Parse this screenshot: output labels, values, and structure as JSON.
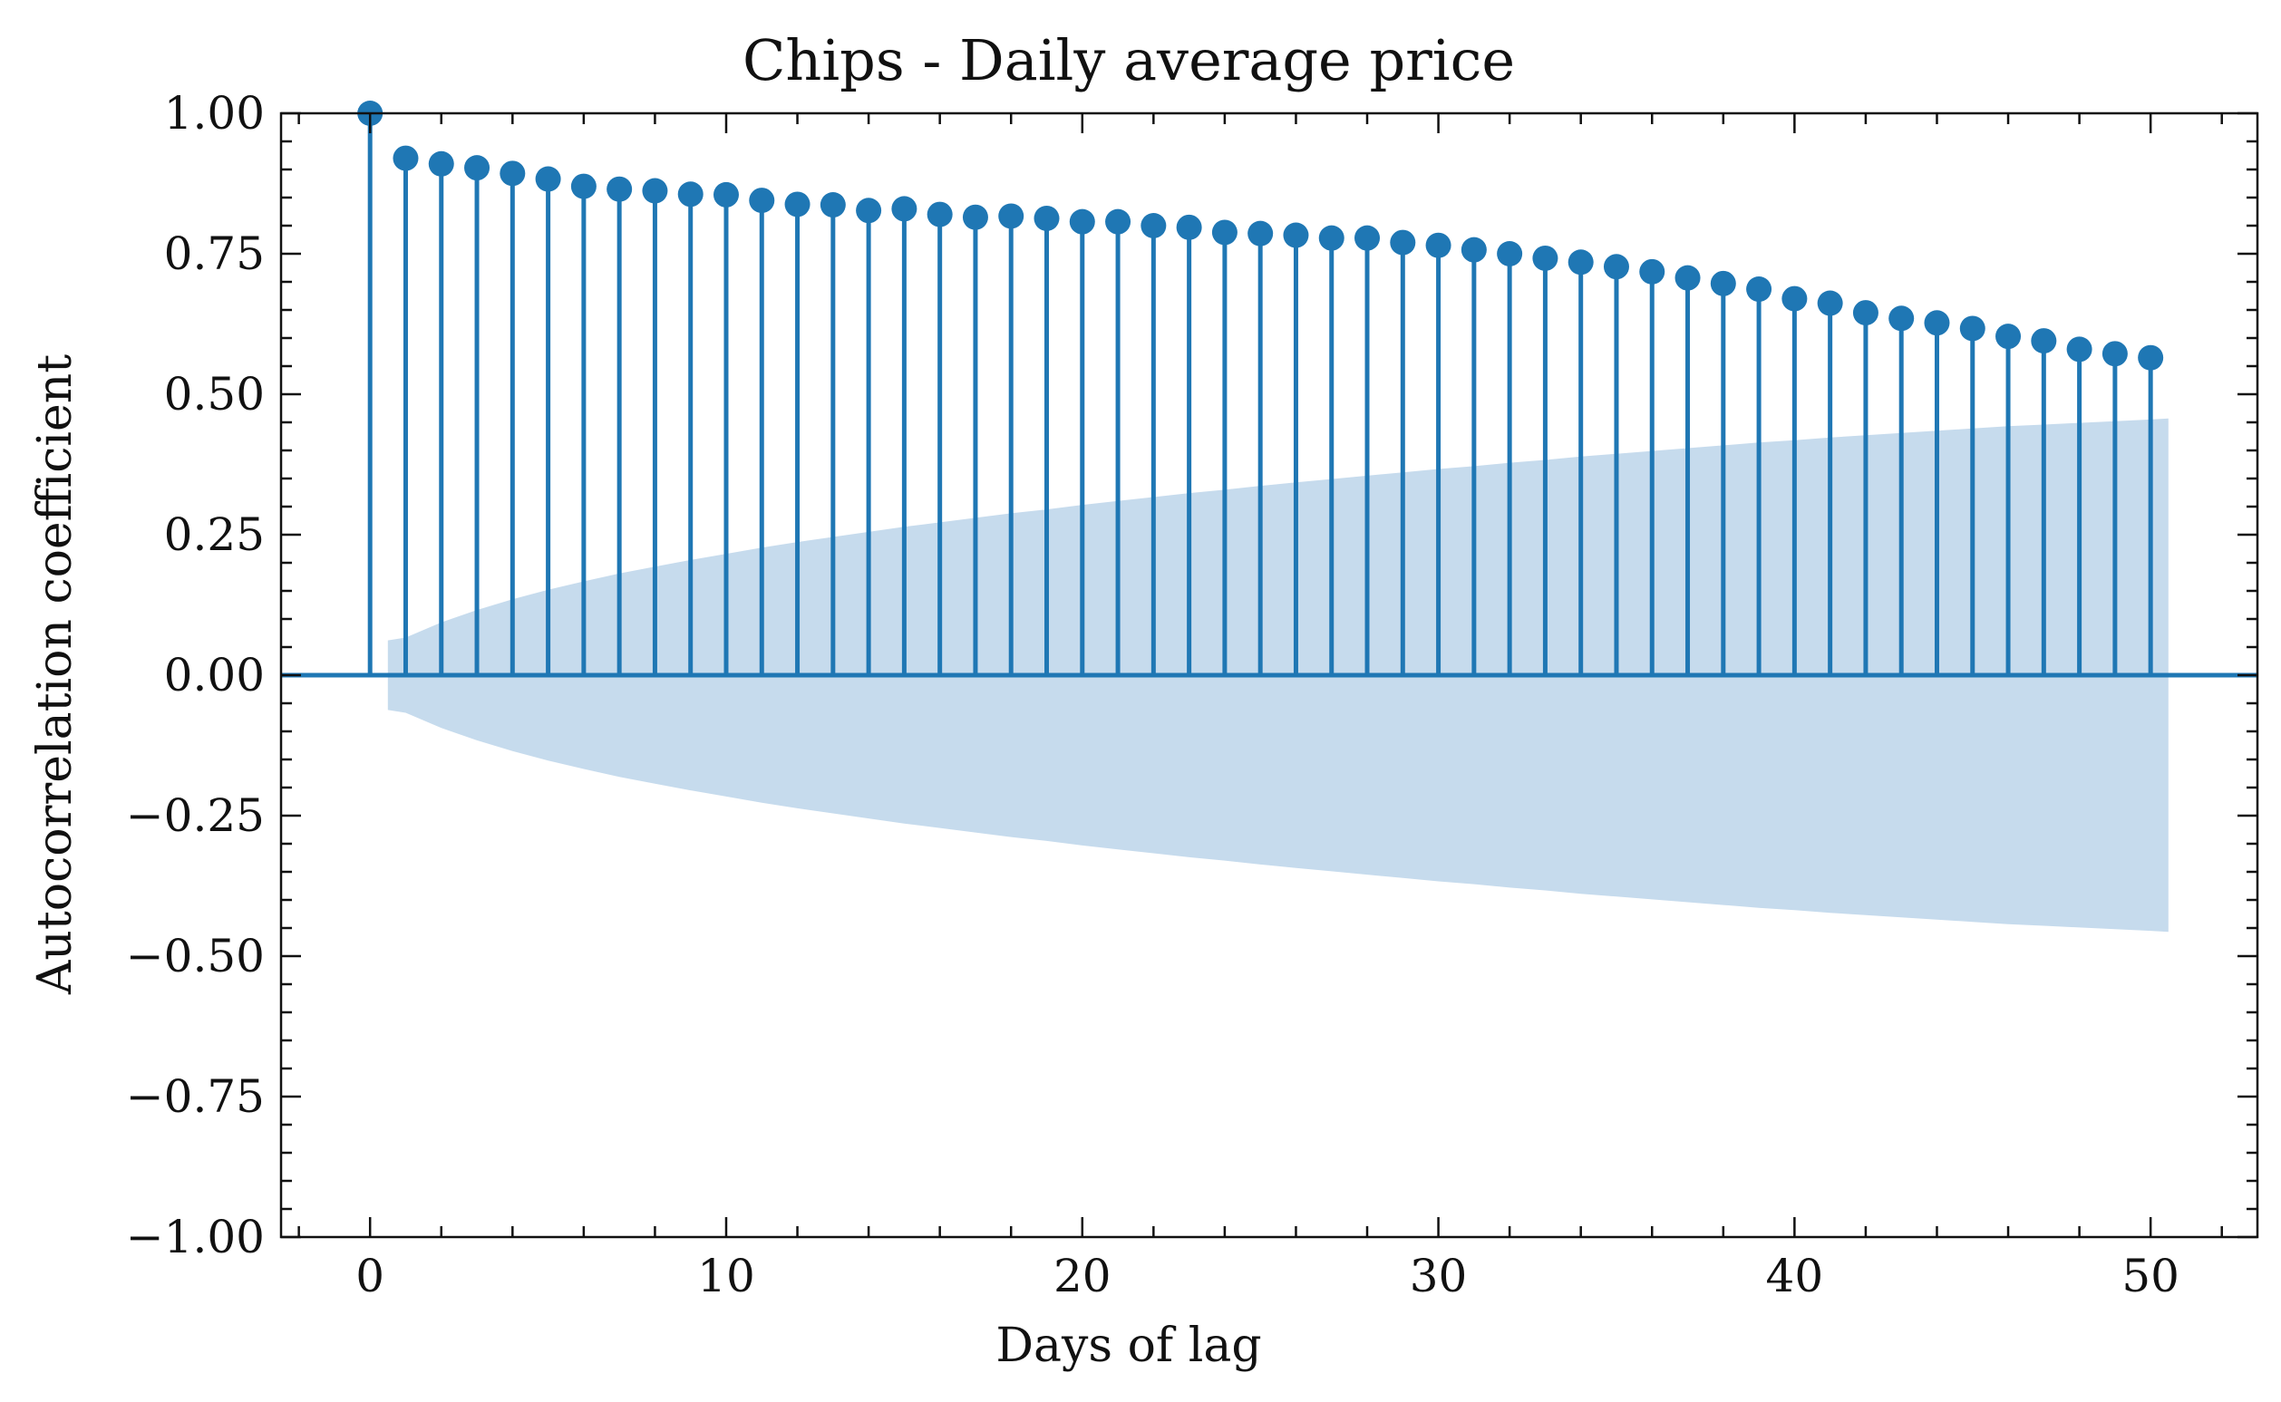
{
  "chart_data": {
    "type": "stem",
    "title": "Chips - Daily average price",
    "xlabel": "Days of lag",
    "ylabel": "Autocorrelation coefficient",
    "xlim": [
      -2.5,
      53
    ],
    "ylim": [
      -1.0,
      1.0
    ],
    "xticks": [
      0,
      10,
      20,
      30,
      40,
      50
    ],
    "xtick_labels": [
      "0",
      "10",
      "20",
      "30",
      "40",
      "50"
    ],
    "yticks": [
      1.0,
      0.75,
      0.5,
      0.25,
      0.0,
      -0.25,
      -0.5,
      -0.75,
      -1.0
    ],
    "ytick_labels": [
      "1.00",
      "0.75",
      "0.50",
      "0.25",
      "0.00",
      "−0.25",
      "−0.50",
      "−0.75",
      "−1.00"
    ],
    "grid": false,
    "colors": {
      "stem": "#1f77b4",
      "confidence_band": "#c6dbed"
    },
    "series": {
      "lags": [
        0,
        1,
        2,
        3,
        4,
        5,
        6,
        7,
        8,
        9,
        10,
        11,
        12,
        13,
        14,
        15,
        16,
        17,
        18,
        19,
        20,
        21,
        22,
        23,
        24,
        25,
        26,
        27,
        28,
        29,
        30,
        31,
        32,
        33,
        34,
        35,
        36,
        37,
        38,
        39,
        40,
        41,
        42,
        43,
        44,
        45,
        46,
        47,
        48,
        49,
        50
      ],
      "acf": [
        1.0,
        0.92,
        0.91,
        0.903,
        0.893,
        0.883,
        0.87,
        0.865,
        0.862,
        0.856,
        0.855,
        0.845,
        0.838,
        0.837,
        0.827,
        0.83,
        0.82,
        0.815,
        0.817,
        0.813,
        0.807,
        0.807,
        0.8,
        0.797,
        0.788,
        0.786,
        0.783,
        0.778,
        0.778,
        0.77,
        0.765,
        0.757,
        0.75,
        0.742,
        0.735,
        0.727,
        0.718,
        0.707,
        0.697,
        0.687,
        0.67,
        0.662,
        0.645,
        0.635,
        0.627,
        0.617,
        0.603,
        0.595,
        0.58,
        0.572,
        0.565
      ]
    },
    "confidence_band": {
      "lags": [
        0.5,
        1,
        2,
        3,
        4,
        5,
        6,
        7,
        8,
        9,
        10,
        11,
        12,
        13,
        14,
        15,
        16,
        17,
        18,
        19,
        20,
        21,
        22,
        23,
        24,
        25,
        26,
        27,
        28,
        29,
        30,
        31,
        32,
        33,
        34,
        35,
        36,
        37,
        38,
        39,
        40,
        41,
        42,
        43,
        44,
        45,
        46,
        47,
        48,
        49,
        50,
        50.5
      ],
      "upper": [
        0.062,
        0.067,
        0.094,
        0.116,
        0.135,
        0.152,
        0.167,
        0.181,
        0.193,
        0.205,
        0.216,
        0.227,
        0.237,
        0.246,
        0.255,
        0.264,
        0.272,
        0.28,
        0.288,
        0.295,
        0.303,
        0.31,
        0.317,
        0.324,
        0.33,
        0.337,
        0.343,
        0.349,
        0.355,
        0.361,
        0.367,
        0.372,
        0.378,
        0.383,
        0.389,
        0.394,
        0.399,
        0.404,
        0.409,
        0.414,
        0.418,
        0.423,
        0.427,
        0.431,
        0.435,
        0.439,
        0.443,
        0.446,
        0.449,
        0.452,
        0.455,
        0.457
      ]
    }
  }
}
